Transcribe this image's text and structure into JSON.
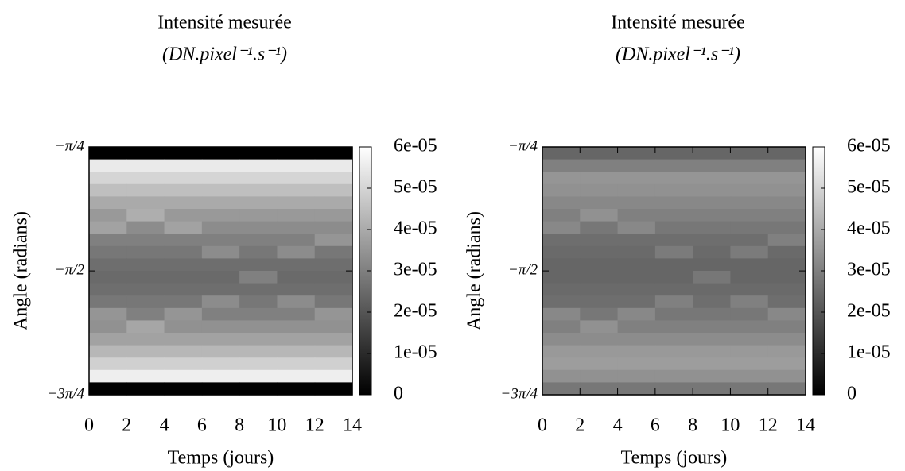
{
  "chart_data": [
    {
      "type": "heatmap",
      "title": "Intensité mesurée",
      "subtitle": "(DN.pixel⁻¹.s⁻¹)",
      "xlabel": "Temps (jours)",
      "ylabel": "Angle (radians)",
      "xlim": [
        0,
        14
      ],
      "xticks": [
        0,
        2,
        4,
        6,
        8,
        10,
        12,
        14
      ],
      "ylim": [
        -2.356,
        -0.785
      ],
      "yticks": [
        {
          "value": -0.785,
          "label": "−π/4"
        },
        {
          "value": -1.571,
          "label": "−π/2"
        },
        {
          "value": -2.356,
          "label": "−3π/4"
        }
      ],
      "zlim": [
        0,
        6e-05
      ],
      "zticks": [
        0,
        {
          "value": 1e-05,
          "label": "1e-05"
        },
        {
          "value": 2e-05,
          "label": "2e-05"
        },
        {
          "value": 3e-05,
          "label": "3e-05"
        },
        {
          "value": 4e-05,
          "label": "4e-05"
        },
        {
          "value": 5e-05,
          "label": "5e-05"
        },
        {
          "value": 6e-05,
          "label": "6e-05"
        }
      ],
      "colormap": "gray",
      "z": [
        [
          0,
          0,
          0,
          0,
          0,
          0,
          0
        ],
        [
          5.5e-05,
          5.5e-05,
          5.5e-05,
          5.5e-05,
          5.5e-05,
          5.5e-05,
          5.5e-05
        ],
        [
          5e-05,
          5e-05,
          5e-05,
          5e-05,
          5e-05,
          5e-05,
          5e-05
        ],
        [
          4.5e-05,
          4.5e-05,
          4.5e-05,
          4.5e-05,
          4.5e-05,
          4.5e-05,
          4.5e-05
        ],
        [
          4e-05,
          4e-05,
          4e-05,
          4e-05,
          4e-05,
          4e-05,
          4e-05
        ],
        [
          3.6e-05,
          4.1e-05,
          3.6e-05,
          3.6e-05,
          3.6e-05,
          3.6e-05,
          3.6e-05
        ],
        [
          3.8e-05,
          3.3e-05,
          3.8e-05,
          3.3e-05,
          3.3e-05,
          3.3e-05,
          3.3e-05
        ],
        [
          3e-05,
          3e-05,
          3e-05,
          3e-05,
          3e-05,
          3e-05,
          3.5e-05
        ],
        [
          2.8e-05,
          2.8e-05,
          2.8e-05,
          3.3e-05,
          2.8e-05,
          3.3e-05,
          2.8e-05
        ],
        [
          2.6e-05,
          2.6e-05,
          2.6e-05,
          2.6e-05,
          2.6e-05,
          2.6e-05,
          2.6e-05
        ],
        [
          2.5e-05,
          2.5e-05,
          2.5e-05,
          2.5e-05,
          3e-05,
          2.5e-05,
          2.5e-05
        ],
        [
          2.6e-05,
          2.6e-05,
          2.6e-05,
          2.6e-05,
          2.6e-05,
          2.6e-05,
          2.6e-05
        ],
        [
          2.8e-05,
          2.8e-05,
          2.8e-05,
          3.3e-05,
          2.8e-05,
          3.3e-05,
          2.8e-05
        ],
        [
          3.5e-05,
          3e-05,
          3.5e-05,
          3e-05,
          3e-05,
          3e-05,
          3.5e-05
        ],
        [
          3.4e-05,
          3.9e-05,
          3.4e-05,
          3.4e-05,
          3.4e-05,
          3.4e-05,
          3.4e-05
        ],
        [
          3.8e-05,
          3.8e-05,
          3.8e-05,
          3.8e-05,
          3.8e-05,
          3.8e-05,
          3.8e-05
        ],
        [
          4.3e-05,
          4.3e-05,
          4.3e-05,
          4.3e-05,
          4.3e-05,
          4.3e-05,
          4.3e-05
        ],
        [
          4.9e-05,
          4.9e-05,
          4.9e-05,
          4.9e-05,
          4.9e-05,
          4.9e-05,
          4.9e-05
        ],
        [
          5.6e-05,
          5.6e-05,
          5.6e-05,
          5.6e-05,
          5.6e-05,
          5.6e-05,
          5.6e-05
        ],
        [
          0,
          0,
          0,
          0,
          0,
          0,
          0
        ]
      ]
    },
    {
      "type": "heatmap",
      "title": "Intensité mesurée",
      "subtitle": "(DN.pixel⁻¹.s⁻¹)",
      "xlabel": "Temps (jours)",
      "ylabel": "Angle (radians)",
      "xlim": [
        0,
        14
      ],
      "xticks": [
        0,
        2,
        4,
        6,
        8,
        10,
        12,
        14
      ],
      "ylim": [
        -2.356,
        -0.785
      ],
      "yticks": [
        {
          "value": -0.785,
          "label": "−π/4"
        },
        {
          "value": -1.571,
          "label": "−π/2"
        },
        {
          "value": -2.356,
          "label": "−3π/4"
        }
      ],
      "zlim": [
        0,
        6e-05
      ],
      "zticks": [
        0,
        {
          "value": 1e-05,
          "label": "1e-05"
        },
        {
          "value": 2e-05,
          "label": "2e-05"
        },
        {
          "value": 3e-05,
          "label": "3e-05"
        },
        {
          "value": 4e-05,
          "label": "4e-05"
        },
        {
          "value": 5e-05,
          "label": "5e-05"
        },
        {
          "value": 6e-05,
          "label": "6e-05"
        }
      ],
      "colormap": "gray",
      "z": [
        [
          2.4e-05,
          2.4e-05,
          2.4e-05,
          2.4e-05,
          2.4e-05,
          2.4e-05,
          2.4e-05
        ],
        [
          3e-05,
          3e-05,
          3e-05,
          3e-05,
          3e-05,
          3e-05,
          3e-05
        ],
        [
          3.5e-05,
          3.5e-05,
          3.5e-05,
          3.5e-05,
          3.5e-05,
          3.5e-05,
          3.5e-05
        ],
        [
          3.4e-05,
          3.4e-05,
          3.4e-05,
          3.4e-05,
          3.4e-05,
          3.4e-05,
          3.4e-05
        ],
        [
          3.2e-05,
          3.2e-05,
          3.2e-05,
          3.2e-05,
          3.2e-05,
          3.2e-05,
          3.2e-05
        ],
        [
          3e-05,
          3.4e-05,
          3e-05,
          3e-05,
          3e-05,
          3e-05,
          3e-05
        ],
        [
          3.2e-05,
          2.8e-05,
          3.2e-05,
          2.8e-05,
          2.8e-05,
          2.8e-05,
          2.8e-05
        ],
        [
          2.6e-05,
          2.6e-05,
          2.6e-05,
          2.6e-05,
          2.6e-05,
          2.6e-05,
          3e-05
        ],
        [
          2.5e-05,
          2.5e-05,
          2.5e-05,
          2.9e-05,
          2.5e-05,
          2.9e-05,
          2.5e-05
        ],
        [
          2.4e-05,
          2.4e-05,
          2.4e-05,
          2.4e-05,
          2.4e-05,
          2.4e-05,
          2.4e-05
        ],
        [
          2.4e-05,
          2.4e-05,
          2.4e-05,
          2.4e-05,
          2.8e-05,
          2.4e-05,
          2.4e-05
        ],
        [
          2.5e-05,
          2.5e-05,
          2.5e-05,
          2.5e-05,
          2.5e-05,
          2.5e-05,
          2.5e-05
        ],
        [
          2.6e-05,
          2.6e-05,
          2.6e-05,
          3e-05,
          2.6e-05,
          3e-05,
          2.6e-05
        ],
        [
          3.2e-05,
          2.8e-05,
          3.2e-05,
          2.8e-05,
          2.8e-05,
          2.8e-05,
          3.2e-05
        ],
        [
          3e-05,
          3.4e-05,
          3e-05,
          3e-05,
          3e-05,
          3e-05,
          3e-05
        ],
        [
          3.3e-05,
          3.3e-05,
          3.3e-05,
          3.3e-05,
          3.3e-05,
          3.3e-05,
          3.3e-05
        ],
        [
          3.6e-05,
          3.6e-05,
          3.6e-05,
          3.6e-05,
          3.6e-05,
          3.6e-05,
          3.6e-05
        ],
        [
          3.7e-05,
          3.7e-05,
          3.7e-05,
          3.7e-05,
          3.7e-05,
          3.7e-05,
          3.7e-05
        ],
        [
          3.4e-05,
          3.4e-05,
          3.4e-05,
          3.4e-05,
          3.4e-05,
          3.4e-05,
          3.4e-05
        ],
        [
          2.8e-05,
          2.8e-05,
          2.8e-05,
          2.8e-05,
          2.8e-05,
          2.8e-05,
          2.8e-05
        ]
      ]
    }
  ]
}
